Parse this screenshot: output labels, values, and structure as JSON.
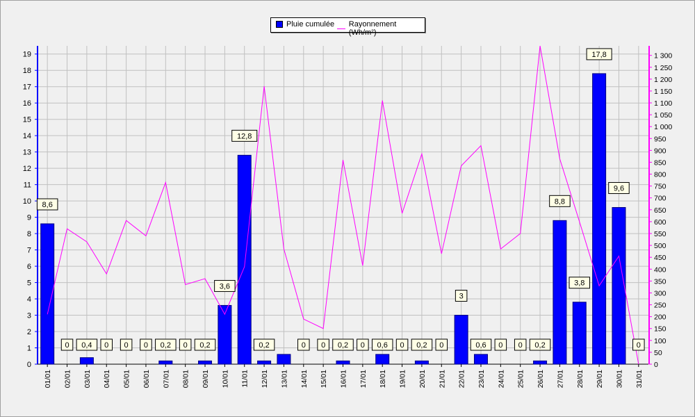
{
  "chart_data": {
    "type": "bar",
    "categories": [
      "01/01",
      "02/01",
      "03/01",
      "04/01",
      "05/01",
      "06/01",
      "07/01",
      "08/01",
      "09/01",
      "10/01",
      "11/01",
      "12/01",
      "13/01",
      "14/01",
      "15/01",
      "16/01",
      "17/01",
      "18/01",
      "19/01",
      "20/01",
      "21/01",
      "22/01",
      "23/01",
      "24/01",
      "25/01",
      "26/01",
      "27/01",
      "28/01",
      "29/01",
      "30/01",
      "31/01"
    ],
    "series": [
      {
        "name": "Pluie cumulée",
        "type": "bar",
        "axis": "left",
        "color": "#0000ff",
        "values": [
          8.6,
          0,
          0.4,
          0,
          0,
          0,
          0.2,
          0,
          0.2,
          3.6,
          12.8,
          0.2,
          0.6,
          0,
          0,
          0.2,
          0,
          0.6,
          0,
          0.2,
          0,
          3,
          0.6,
          0,
          0,
          0.2,
          8.8,
          3.8,
          17.8,
          9.6,
          0
        ]
      },
      {
        "name": "Rayonnement (Wh/m²)",
        "type": "line",
        "axis": "right",
        "color": "#ff00ff",
        "values": [
          210,
          570,
          515,
          380,
          605,
          540,
          765,
          335,
          360,
          210,
          410,
          1170,
          485,
          190,
          150,
          860,
          415,
          1110,
          635,
          885,
          465,
          835,
          920,
          485,
          550,
          1340,
          865,
          600,
          330,
          455,
          0
        ]
      }
    ],
    "data_labels": [
      "8,6",
      "0",
      "0,4",
      "0",
      "0",
      "0",
      "0,2",
      "0",
      "0,2",
      "3,6",
      "12,8",
      "0,2",
      "",
      "0",
      "0",
      "0,2",
      "0",
      "0,6",
      "0",
      "0,2",
      "0",
      "3",
      "0,6",
      "0",
      "0",
      "0,2",
      "8,8",
      "3,8",
      "17,8",
      "9,6",
      "0"
    ],
    "y_left_ticks": [
      "0",
      "1",
      "2",
      "3",
      "4",
      "5",
      "6",
      "7",
      "8",
      "9",
      "10",
      "11",
      "12",
      "13",
      "14",
      "15",
      "16",
      "17",
      "18",
      "19"
    ],
    "y_right_ticks": [
      "0",
      "50",
      "100",
      "150",
      "200",
      "250",
      "300",
      "350",
      "400",
      "450",
      "500",
      "550",
      "600",
      "650",
      "700",
      "750",
      "800",
      "850",
      "900",
      "950",
      "1 000",
      "1 050",
      "1 100",
      "1 150",
      "1 200",
      "1 250",
      "1 300"
    ],
    "ylim_left": [
      0,
      19.5
    ],
    "ylim_right": [
      0,
      1340
    ],
    "legend_position": "top",
    "grid": true
  }
}
